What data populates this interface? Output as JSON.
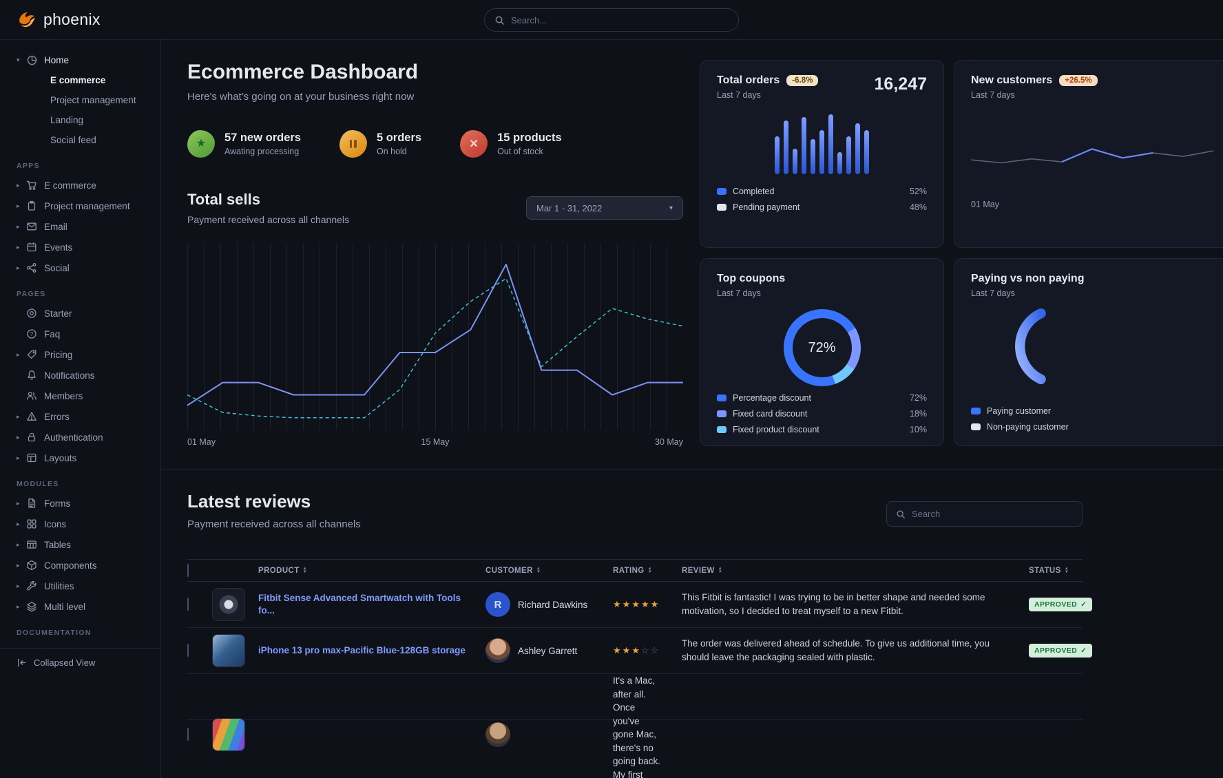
{
  "brand": {
    "name": "phoenix"
  },
  "colors": {
    "primary": "#3874ff",
    "link": "#7e9cff",
    "teal": "#3fc0d8",
    "brand_orange": "#e5780b",
    "success_badge_bg": "#d3efdb",
    "success_badge_text": "#1b7540",
    "warning_badge_bg": "#f0e3c7",
    "warning_badge_text": "#6a4a06",
    "orange_badge_bg": "#f7dcc2",
    "orange_badge_text": "#a84309"
  },
  "topnav": {
    "search_placeholder": "Search..."
  },
  "sidebar": {
    "home": {
      "label": "Home"
    },
    "home_children": [
      {
        "label": "E commerce"
      },
      {
        "label": "Project management"
      },
      {
        "label": "Landing"
      },
      {
        "label": "Social feed"
      }
    ],
    "sections": [
      {
        "title": "APPS",
        "items": [
          {
            "label": "E commerce",
            "icon": "cart-icon"
          },
          {
            "label": "Project management",
            "icon": "clipboard-icon"
          },
          {
            "label": "Email",
            "icon": "envelope-icon"
          },
          {
            "label": "Events",
            "icon": "calendar-icon"
          },
          {
            "label": "Social",
            "icon": "share-icon"
          }
        ]
      },
      {
        "title": "PAGES",
        "items": [
          {
            "label": "Starter",
            "icon": "target-icon"
          },
          {
            "label": "Faq",
            "icon": "question-icon"
          },
          {
            "label": "Pricing",
            "icon": "tag-icon"
          },
          {
            "label": "Notifications",
            "icon": "bell-icon"
          },
          {
            "label": "Members",
            "icon": "users-icon"
          },
          {
            "label": "Errors",
            "icon": "warning-icon"
          },
          {
            "label": "Authentication",
            "icon": "lock-icon"
          },
          {
            "label": "Layouts",
            "icon": "layout-icon"
          }
        ]
      },
      {
        "title": "MODULES",
        "items": [
          {
            "label": "Forms",
            "icon": "file-icon"
          },
          {
            "label": "Icons",
            "icon": "grid-icon"
          },
          {
            "label": "Tables",
            "icon": "table-icon"
          },
          {
            "label": "Components",
            "icon": "cube-icon"
          },
          {
            "label": "Utilities",
            "icon": "wrench-icon"
          },
          {
            "label": "Multi level",
            "icon": "layers-icon"
          }
        ]
      },
      {
        "title": "DOCUMENTATION",
        "items": []
      }
    ],
    "collapse_label": "Collapsed View"
  },
  "header": {
    "title": "Ecommerce Dashboard",
    "subtitle": "Here's what's going on at your business right now"
  },
  "stats": [
    {
      "value": "57 new orders",
      "caption": "Awating processing",
      "icon": "star-seal-icon"
    },
    {
      "value": "5 orders",
      "caption": "On hold",
      "icon": "pause-seal-icon"
    },
    {
      "value": "15 products",
      "caption": "Out of stock",
      "icon": "x-seal-icon"
    }
  ],
  "total_sells": {
    "title": "Total sells",
    "subtitle": "Payment received across all channels",
    "date_range": "Mar 1 - 31, 2022"
  },
  "cards": {
    "total_orders": {
      "title": "Total orders",
      "badge": "-6.8%",
      "period": "Last 7 days",
      "value": "16,247",
      "legend": [
        {
          "label": "Completed",
          "value": "52%"
        },
        {
          "label": "Pending payment",
          "value": "48%"
        }
      ]
    },
    "new_customers": {
      "title": "New customers",
      "badge": "+26.5%",
      "period": "Last 7 days",
      "x_label": "01 May"
    },
    "top_coupons": {
      "title": "Top coupons",
      "period": "Last 7 days",
      "center_value": "72%",
      "legend": [
        {
          "label": "Percentage discount",
          "value": "72%"
        },
        {
          "label": "Fixed card discount",
          "value": "18%"
        },
        {
          "label": "Fixed product discount",
          "value": "10%"
        }
      ]
    },
    "paying": {
      "title": "Paying vs non paying",
      "period": "Last 7 days",
      "legend": [
        {
          "label": "Paying customer"
        },
        {
          "label": "Non-paying customer"
        }
      ]
    }
  },
  "reviews": {
    "title": "Latest reviews",
    "subtitle": "Payment received across all channels",
    "search_placeholder": "Search",
    "columns": [
      "PRODUCT",
      "CUSTOMER",
      "RATING",
      "REVIEW",
      "STATUS"
    ],
    "rows": [
      {
        "product": "Fitbit Sense Advanced Smartwatch with Tools fo...",
        "customer": "Richard Dawkins",
        "avatar_initial": "R",
        "rating": 5,
        "review": "This Fitbit is fantastic! I was trying to be in better shape and needed some motivation, so I decided to treat myself to a new Fitbit.",
        "status": "APPROVED"
      },
      {
        "product": "iPhone 13 pro max-Pacific Blue-128GB storage",
        "customer": "Ashley Garrett",
        "rating": 3,
        "review": "The order was delivered ahead of schedule. To give us additional time, you should leave the packaging sealed with plastic.",
        "status": "APPROVED"
      },
      {
        "product": "",
        "customer": "",
        "rating": null,
        "review": "It's a Mac, after all. Once you've gone Mac, there's no going back. My first Mac lasted",
        "status": ""
      }
    ]
  },
  "chart_data": [
    {
      "type": "line",
      "title": "Total sells",
      "x_labels": [
        "01 May",
        "15 May",
        "30 May"
      ],
      "grid": "vertical",
      "series": [
        {
          "name": "sells-solid",
          "color": "#7b93f5",
          "style": "solid",
          "values": [
            11,
            24,
            24,
            17,
            17,
            17,
            41,
            41,
            54,
            91,
            31,
            31,
            17,
            24,
            24
          ]
        },
        {
          "name": "sells-dashed",
          "color": "#3fc0d8",
          "style": "dashed",
          "values": [
            17,
            7,
            5,
            4,
            4,
            4,
            20,
            52,
            70,
            83,
            33,
            50,
            66,
            60,
            56
          ]
        }
      ]
    },
    {
      "type": "bar",
      "title": "Total orders - last 7 days",
      "color": "#3874ff",
      "values": [
        60,
        85,
        40,
        90,
        55,
        70,
        95,
        35,
        60,
        80,
        70
      ],
      "legend": [
        {
          "label": "Completed",
          "value": 52
        },
        {
          "label": "Pending payment",
          "value": 48
        }
      ]
    },
    {
      "type": "line",
      "title": "New customers - last 7 days",
      "color": "#5a6478",
      "highlight_color": "#6a88f7",
      "values": [
        40,
        34,
        42,
        36,
        62,
        44,
        54,
        47,
        58
      ],
      "highlight": [
        3,
        6
      ],
      "x_label": "01 May"
    },
    {
      "type": "donut",
      "title": "Top coupons - last 7 days",
      "center_label": "72%",
      "labels": [
        "Percentage discount",
        "Fixed card discount",
        "Fixed product discount"
      ],
      "values": [
        72,
        18,
        10
      ],
      "colors": [
        "#3874ff",
        "#7e96ff",
        "#6fc8ff"
      ]
    }
  ]
}
